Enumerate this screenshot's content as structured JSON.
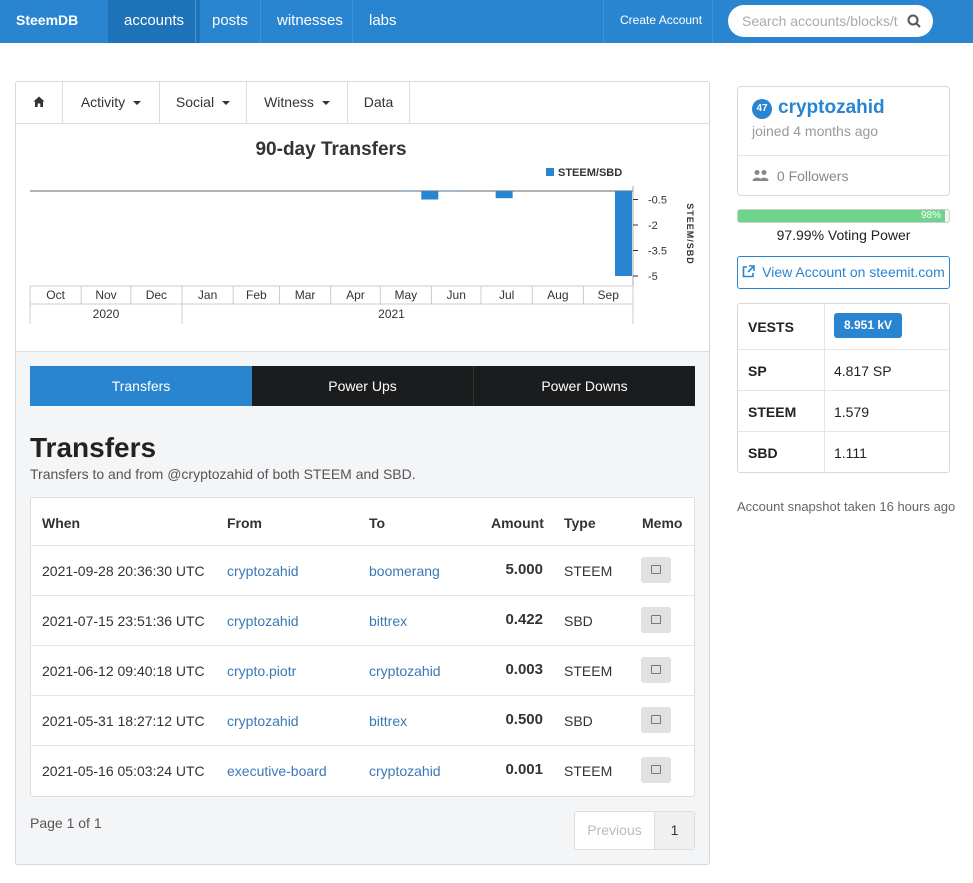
{
  "nav": {
    "brand": "SteemDB",
    "items": [
      "accounts",
      "posts",
      "witnesses",
      "labs"
    ],
    "create_account": "Create Account",
    "search_placeholder": "Search accounts/blocks/t"
  },
  "tabs": {
    "activity": "Activity",
    "social": "Social",
    "witness": "Witness",
    "data": "Data"
  },
  "chart_data": {
    "type": "bar",
    "title": "90-day Transfers",
    "legend": "STEEM/SBD",
    "legend_position": "top-right",
    "ylabel": "STEEM/SBD",
    "ylim": [
      -5,
      0
    ],
    "yticks": [
      "-0.5",
      "-2",
      "-3.5",
      "-5"
    ],
    "months": [
      "Oct",
      "Nov",
      "Dec",
      "Jan",
      "Feb",
      "Mar",
      "Apr",
      "May",
      "Jun",
      "Jul",
      "Aug",
      "Sep"
    ],
    "years": [
      "2020",
      "2021"
    ],
    "series": [
      {
        "x": [
          "2021-05-16",
          "2021-05-31",
          "2021-06-12",
          "2021-07-15",
          "2021-09-28"
        ],
        "values": [
          -0.001,
          -0.5,
          -0.003,
          -0.422,
          -5.0
        ]
      }
    ]
  },
  "switch": {
    "transfers": "Transfers",
    "power_ups": "Power Ups",
    "power_downs": "Power Downs"
  },
  "section": {
    "title": "Transfers",
    "subtitle": "Transfers to and from @cryptozahid of both STEEM and SBD."
  },
  "table": {
    "headers": {
      "when": "When",
      "from": "From",
      "to": "To",
      "amount": "Amount",
      "type": "Type",
      "memo": "Memo"
    },
    "rows": [
      {
        "when": "2021-09-28 20:36:30 UTC",
        "from": "cryptozahid",
        "to": "boomerang",
        "amount": "5.000",
        "type": "STEEM"
      },
      {
        "when": "2021-07-15 23:51:36 UTC",
        "from": "cryptozahid",
        "to": "bittrex",
        "amount": "0.422",
        "type": "SBD"
      },
      {
        "when": "2021-06-12 09:40:18 UTC",
        "from": "crypto.piotr",
        "to": "cryptozahid",
        "amount": "0.003",
        "type": "STEEM"
      },
      {
        "when": "2021-05-31 18:27:12 UTC",
        "from": "cryptozahid",
        "to": "bittrex",
        "amount": "0.500",
        "type": "SBD"
      },
      {
        "when": "2021-05-16 05:03:24 UTC",
        "from": "executive-board",
        "to": "cryptozahid",
        "amount": "0.001",
        "type": "STEEM"
      }
    ]
  },
  "pagination": {
    "info": "Page 1 of 1",
    "previous": "Previous",
    "current": "1"
  },
  "profile": {
    "reputation": "47",
    "username": "cryptozahid",
    "joined": "joined 4 months ago",
    "followers": "0 Followers"
  },
  "voting": {
    "percent_label": "98%",
    "fraction": 0.9799,
    "label": "97.99% Voting Power"
  },
  "view_account": "View Account on steemit.com",
  "stats": {
    "vests_label": "VESTS",
    "vests_value": "8.951 kV",
    "sp_label": "SP",
    "sp_value": "4.817 SP",
    "steem_label": "STEEM",
    "steem_value": "1.579",
    "sbd_label": "SBD",
    "sbd_value": "1.111"
  },
  "snapshot": "Account snapshot taken 16 hours ago",
  "colors": {
    "primary": "#2a85d0",
    "dark": "#1b1c1d",
    "bar": "#2a85d0",
    "voting": "#6fd48b"
  }
}
